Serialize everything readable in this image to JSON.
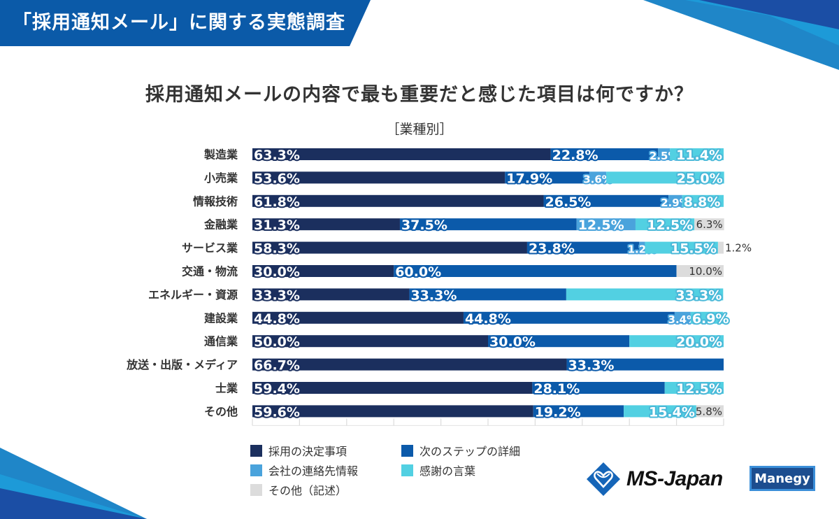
{
  "banner": {
    "title": "「採用通知メール」に関する実態調査"
  },
  "question": "採用通知メールの内容で最も重要だと感じた項目は何ですか？",
  "subtitle": "［業種別］",
  "colors": {
    "banner": "#0b5aa8",
    "series": [
      "#1b2f5e",
      "#0b5aaa",
      "#4aa3dc",
      "#52d0e2",
      "#dcdcdc"
    ],
    "other_label": "#333333"
  },
  "chart_data": {
    "type": "bar",
    "orientation": "horizontal",
    "stacked": true,
    "title": "採用通知メールの内容で最も重要だと感じた項目は何ですか？",
    "subtitle": "［業種別］",
    "xlim": [
      0,
      100
    ],
    "x_unit": "%",
    "grid": true,
    "legend_position": "bottom-left",
    "categories": [
      "製造業",
      "小売業",
      "情報技術",
      "金融業",
      "サービス業",
      "交通・物流",
      "エネルギー・資源",
      "建設業",
      "通信業",
      "放送・出版・メディア",
      "士業",
      "その他"
    ],
    "series": [
      {
        "name": "採用の決定事項",
        "values": [
          63.3,
          53.6,
          61.8,
          31.3,
          58.3,
          30.0,
          33.3,
          44.8,
          50.0,
          66.7,
          59.4,
          59.6
        ]
      },
      {
        "name": "次のステップの詳細",
        "values": [
          22.8,
          17.9,
          26.5,
          37.5,
          23.8,
          60.0,
          33.3,
          44.8,
          30.0,
          33.3,
          28.1,
          19.2
        ]
      },
      {
        "name": "会社の連絡先情報",
        "values": [
          2.5,
          3.6,
          2.9,
          12.5,
          1.2,
          0,
          0,
          3.4,
          0,
          0,
          0,
          0
        ]
      },
      {
        "name": "感謝の言葉",
        "values": [
          11.4,
          25.0,
          8.8,
          12.5,
          15.5,
          0,
          33.3,
          6.9,
          20.0,
          0,
          12.5,
          15.4
        ]
      },
      {
        "name": "その他（記述）",
        "values": [
          0,
          0,
          0,
          6.3,
          1.2,
          10.0,
          0,
          0,
          0,
          0,
          0,
          5.8
        ]
      }
    ]
  },
  "legend": [
    {
      "label": "採用の決定事項"
    },
    {
      "label": "次のステップの詳細"
    },
    {
      "label": "会社の連絡先情報"
    },
    {
      "label": "感謝の言葉"
    },
    {
      "label": "その他（記述）"
    }
  ],
  "logos": {
    "ms_japan": "MS-Japan",
    "manegy": "Manegy"
  }
}
